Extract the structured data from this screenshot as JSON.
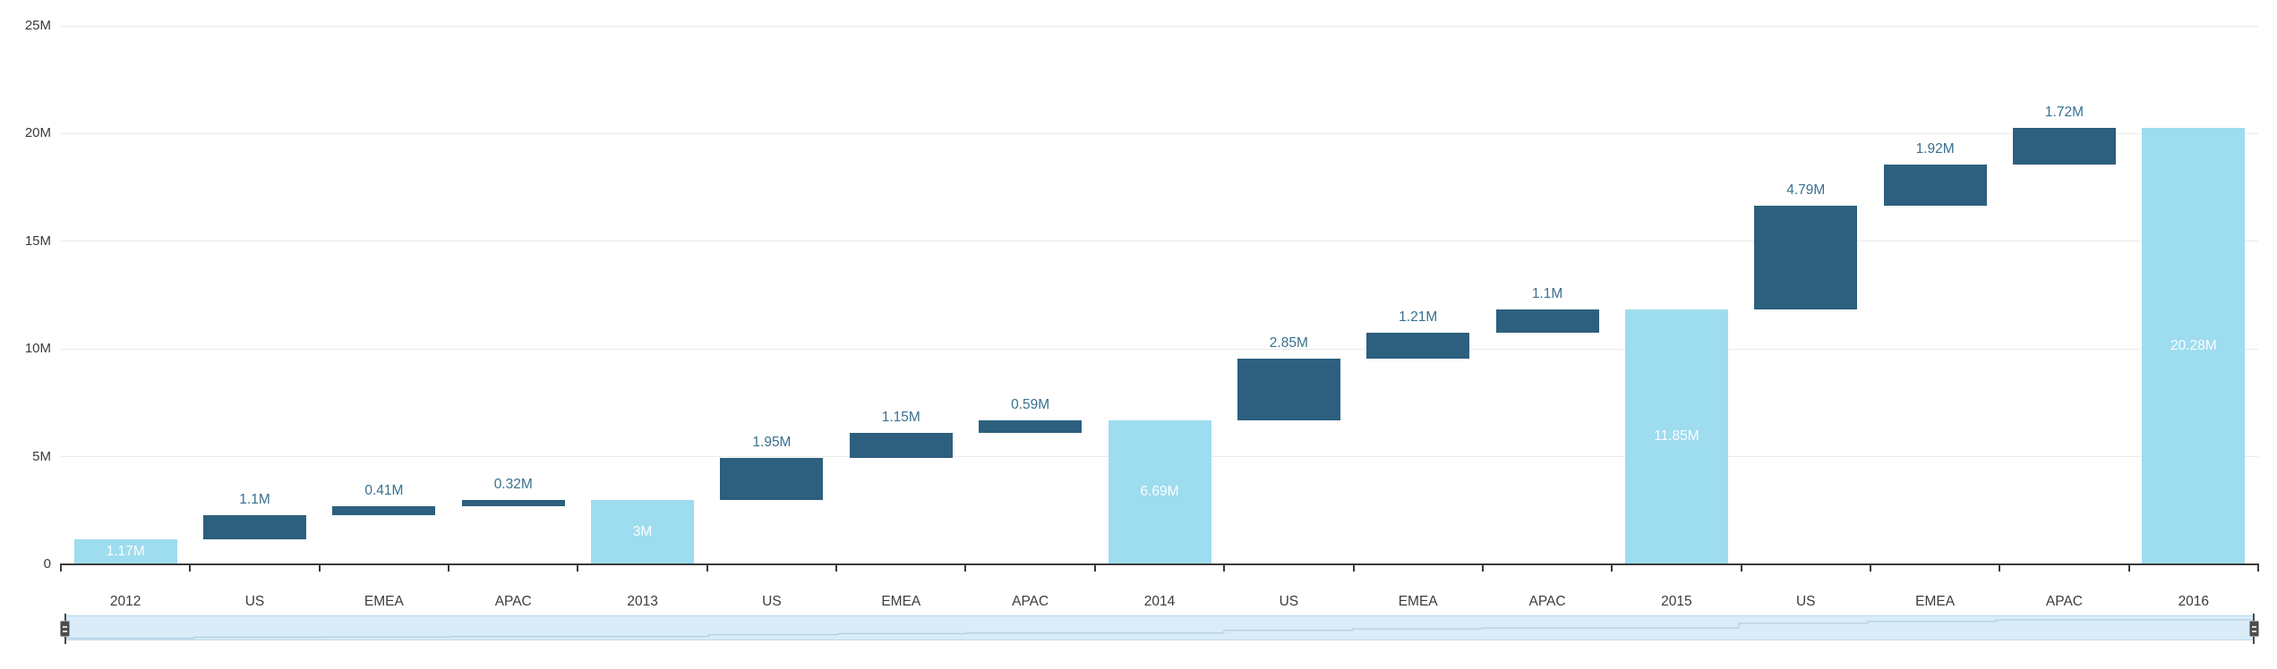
{
  "chart_data": {
    "type": "bar",
    "variant": "waterfall",
    "title": "",
    "xlabel": "",
    "ylabel": "",
    "categories": [
      "2012",
      "US",
      "EMEA",
      "APAC",
      "2013",
      "US",
      "EMEA",
      "APAC",
      "2014",
      "US",
      "EMEA",
      "APAC",
      "2015",
      "US",
      "EMEA",
      "APAC",
      "2016"
    ],
    "values_millions": [
      1.17,
      1.1,
      0.41,
      0.32,
      3,
      1.95,
      1.15,
      0.59,
      6.69,
      2.85,
      1.21,
      1.1,
      11.85,
      4.79,
      1.92,
      1.72,
      20.28
    ],
    "value_labels": [
      "1.17M",
      "1.1M",
      "0.41M",
      "0.32M",
      "3M",
      "1.95M",
      "1.15M",
      "0.59M",
      "6.69M",
      "2.85M",
      "1.21M",
      "1.1M",
      "11.85M",
      "4.79M",
      "1.92M",
      "1.72M",
      "20.28M"
    ],
    "bar_roles": [
      "total",
      "increase",
      "increase",
      "increase",
      "total",
      "increase",
      "increase",
      "increase",
      "total",
      "increase",
      "increase",
      "increase",
      "total",
      "increase",
      "increase",
      "increase",
      "total"
    ],
    "cumulative_end_millions": [
      1.17,
      2.27,
      2.68,
      3,
      3,
      4.95,
      6.1,
      6.69,
      6.69,
      9.54,
      10.75,
      11.85,
      11.85,
      16.64,
      18.56,
      20.28,
      20.28
    ],
    "ylim_millions": [
      0,
      25
    ],
    "y_tick_values_millions": [
      0,
      5,
      10,
      15,
      20,
      25
    ],
    "y_tick_labels": [
      "0",
      "5M",
      "10M",
      "15M",
      "20M",
      "25M"
    ],
    "grid": true,
    "legend": "none",
    "colors": {
      "total_bar": "#9edcef",
      "increase_bar": "#2d5f7e",
      "value_label_text": "#38708f",
      "inside_label_text": "#ffffff",
      "axis": "#3a3a3a",
      "gridline": "#ebebeb",
      "navigator_fill": "#d9ecf8",
      "navigator_border": "#bcd8ea"
    }
  },
  "navigator": {
    "present": true,
    "range": "full",
    "left_handle": "range-start-handle",
    "right_handle": "range-end-handle"
  }
}
